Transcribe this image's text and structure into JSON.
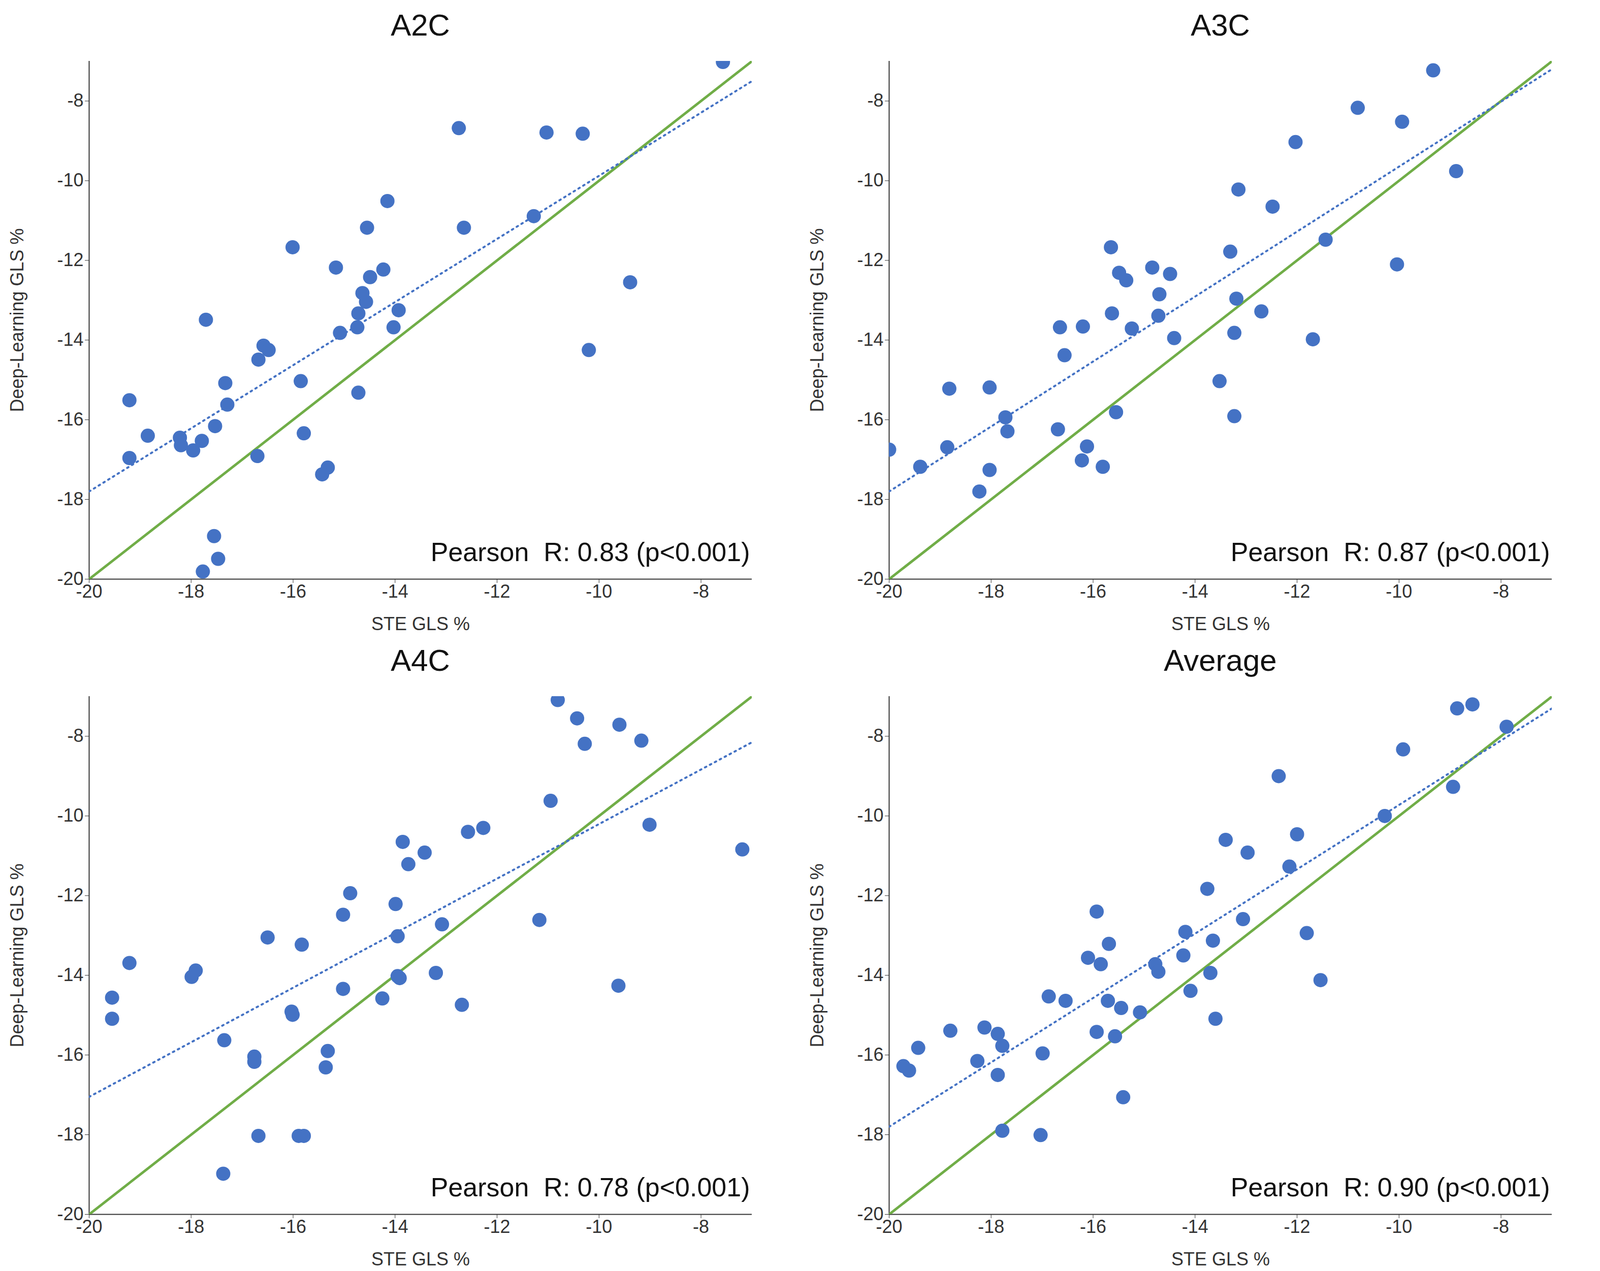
{
  "chart_data": [
    {
      "type": "scatter",
      "title": "A2C",
      "x_label": "STE GLS %",
      "y_label": "Deep-Learning GLS %",
      "xlim": [
        -20,
        -7
      ],
      "ylim": [
        -20,
        -7
      ],
      "xticks": [
        -20,
        -18,
        -16,
        -14,
        -12,
        -10,
        -8
      ],
      "yticks": [
        -20,
        -18,
        -16,
        -14,
        -12,
        -10,
        -8
      ],
      "annotation": "Pearson  R: 0.83 (p<0.001)",
      "series": [
        {
          "type": "scatter",
          "color": "#4472c4",
          "marker": "circle",
          "x": [
            -7.57,
            -12.75,
            -11.03,
            -10.32,
            -14.15,
            -14.55,
            -12.65,
            -11.28,
            -16.01,
            -15.16,
            -14.23,
            -14.49,
            -14.64,
            -14.57,
            -14.72,
            -14.74,
            -14.03,
            -13.93,
            -15.08,
            -16.58,
            -16.48,
            -16.68,
            -17.33,
            -17.29,
            -17.71,
            -15.85,
            -19.21,
            -17.53,
            -18.85,
            -18.22,
            -18.2,
            -17.79,
            -17.96,
            -19.21,
            -16.7,
            -14.72,
            -15.79,
            -15.32,
            -15.43,
            -17.55,
            -17.47,
            -17.77,
            -10.2,
            -9.39
          ],
          "values": [
            -7.02,
            -8.68,
            -8.79,
            -8.82,
            -10.51,
            -11.18,
            -11.18,
            -10.89,
            -11.67,
            -12.18,
            -12.23,
            -12.42,
            -12.82,
            -13.04,
            -13.33,
            -13.68,
            -13.68,
            -13.25,
            -13.82,
            -14.14,
            -14.25,
            -14.49,
            -15.08,
            -15.62,
            -13.49,
            -15.03,
            -15.51,
            -16.16,
            -16.4,
            -16.45,
            -16.64,
            -16.53,
            -16.77,
            -16.96,
            -16.91,
            -15.32,
            -16.34,
            -17.2,
            -17.37,
            -18.92,
            -19.49,
            -19.81,
            -14.25,
            -12.55
          ]
        },
        {
          "type": "line",
          "color": "#70ad47",
          "line_style": "solid",
          "x": [
            -20,
            -7
          ],
          "values": [
            -20,
            -7
          ]
        },
        {
          "type": "line",
          "color": "#4472c4",
          "line_style": "dotted",
          "x": [
            -20,
            -7
          ],
          "values": [
            -17.8,
            -7.5
          ]
        }
      ]
    },
    {
      "type": "scatter",
      "title": "A3C",
      "x_label": "STE GLS %",
      "y_label": "Deep-Learning GLS %",
      "xlim": [
        -20,
        -7
      ],
      "ylim": [
        -20,
        -7
      ],
      "xticks": [
        -20,
        -18,
        -16,
        -14,
        -12,
        -10,
        -8
      ],
      "yticks": [
        -20,
        -18,
        -16,
        -14,
        -12,
        -10,
        -8
      ],
      "annotation": "Pearson  R: 0.87 (p<0.001)",
      "series": [
        {
          "type": "scatter",
          "color": "#4472c4",
          "marker": "circle",
          "x": [
            -9.33,
            -10.81,
            -9.94,
            -8.88,
            -12.03,
            -13.15,
            -12.48,
            -10.04,
            -11.44,
            -15.65,
            -13.31,
            -15.49,
            -15.35,
            -14.84,
            -14.49,
            -14.7,
            -13.19,
            -15.63,
            -14.72,
            -15.24,
            -16.65,
            -16.2,
            -13.23,
            -14.41,
            -12.7,
            -11.69,
            -16.56,
            -13.23,
            -13.52,
            -15.55,
            -16.69,
            -17.72,
            -17.68,
            -18.03,
            -18.82,
            -18.86,
            -19.39,
            -20.0,
            -16.12,
            -16.22,
            -15.81,
            -18.03,
            -18.23
          ],
          "values": [
            -7.23,
            -8.17,
            -8.52,
            -9.76,
            -9.03,
            -10.22,
            -10.65,
            -12.1,
            -11.48,
            -11.67,
            -11.78,
            -12.31,
            -12.5,
            -12.18,
            -12.34,
            -12.85,
            -12.96,
            -13.33,
            -13.39,
            -13.71,
            -13.68,
            -13.66,
            -13.82,
            -13.95,
            -13.28,
            -13.98,
            -14.38,
            -15.91,
            -15.03,
            -15.81,
            -16.24,
            -15.94,
            -16.29,
            -15.19,
            -15.22,
            -16.69,
            -17.18,
            -16.75,
            -16.67,
            -17.02,
            -17.18,
            -17.26,
            -17.8
          ]
        },
        {
          "type": "line",
          "color": "#70ad47",
          "line_style": "solid",
          "x": [
            -20,
            -7
          ],
          "values": [
            -20,
            -7
          ]
        },
        {
          "type": "line",
          "color": "#4472c4",
          "line_style": "dotted",
          "x": [
            -20,
            -7
          ],
          "values": [
            -17.8,
            -7.2
          ]
        }
      ]
    },
    {
      "type": "scatter",
      "title": "A4C",
      "x_label": "STE GLS %",
      "y_label": "Deep-Learning GLS %",
      "xlim": [
        -20,
        -7
      ],
      "ylim": [
        -20,
        -7
      ],
      "xticks": [
        -20,
        -18,
        -16,
        -14,
        -12,
        -10,
        -8
      ],
      "yticks": [
        -20,
        -18,
        -16,
        -14,
        -12,
        -10,
        -8
      ],
      "annotation": "Pearson  R: 0.78 (p<0.001)",
      "series": [
        {
          "type": "scatter",
          "color": "#4472c4",
          "marker": "circle",
          "x": [
            -10.81,
            -10.43,
            -9.6,
            -9.17,
            -10.28,
            -7.19,
            -9.01,
            -10.95,
            -12.27,
            -12.57,
            -13.85,
            -13.42,
            -13.74,
            -14.88,
            -13.99,
            -15.02,
            -11.17,
            -13.08,
            -13.95,
            -16.5,
            -15.83,
            -19.21,
            -17.91,
            -17.99,
            -13.2,
            -13.95,
            -13.91,
            -19.55,
            -19.55,
            -16.03,
            -16.01,
            -15.02,
            -14.25,
            -12.69,
            -9.62,
            -17.35,
            -15.32,
            -15.36,
            -16.76,
            -16.76,
            -16.68,
            -15.89,
            -15.79,
            -17.37
          ],
          "values": [
            -7.09,
            -7.55,
            -7.71,
            -8.11,
            -8.19,
            -10.84,
            -10.22,
            -9.62,
            -10.3,
            -10.4,
            -10.65,
            -10.92,
            -11.21,
            -11.94,
            -12.21,
            -12.48,
            -12.61,
            -12.72,
            -13.02,
            -13.05,
            -13.23,
            -13.69,
            -13.88,
            -14.04,
            -13.94,
            -14.02,
            -14.07,
            -14.56,
            -15.09,
            -14.91,
            -14.99,
            -14.34,
            -14.58,
            -14.74,
            -14.26,
            -15.63,
            -15.9,
            -16.31,
            -16.04,
            -16.17,
            -18.03,
            -18.03,
            -18.03,
            -18.98
          ]
        },
        {
          "type": "line",
          "color": "#70ad47",
          "line_style": "solid",
          "x": [
            -20,
            -7
          ],
          "values": [
            -20,
            -7
          ]
        },
        {
          "type": "line",
          "color": "#4472c4",
          "line_style": "dotted",
          "x": [
            -20,
            -7
          ],
          "values": [
            -17.05,
            -8.15
          ]
        }
      ]
    },
    {
      "type": "scatter",
      "title": "Average",
      "x_label": "STE GLS %",
      "y_label": "Deep-Learning GLS %",
      "xlim": [
        -20,
        -7
      ],
      "ylim": [
        -20,
        -7
      ],
      "xticks": [
        -20,
        -18,
        -16,
        -14,
        -12,
        -10,
        -8
      ],
      "yticks": [
        -20,
        -18,
        -16,
        -14,
        -12,
        -10,
        -8
      ],
      "annotation": "Pearson  R: 0.90 (p<0.001)",
      "series": [
        {
          "type": "scatter",
          "color": "#4472c4",
          "marker": "circle",
          "x": [
            -8.56,
            -8.86,
            -7.89,
            -9.92,
            -12.36,
            -8.94,
            -10.28,
            -12.0,
            -13.4,
            -12.97,
            -12.15,
            -13.76,
            -15.93,
            -13.06,
            -11.81,
            -14.19,
            -15.69,
            -13.65,
            -16.1,
            -14.23,
            -15.85,
            -14.78,
            -14.72,
            -13.7,
            -11.54,
            -14.09,
            -16.87,
            -16.54,
            -15.71,
            -15.45,
            -15.08,
            -13.6,
            -15.93,
            -15.57,
            -18.13,
            -17.87,
            -17.78,
            -18.8,
            -19.43,
            -19.72,
            -19.61,
            -18.27,
            -16.99,
            -17.87,
            -15.41,
            -17.78,
            -17.03
          ],
          "values": [
            -7.2,
            -7.3,
            -7.76,
            -8.33,
            -9.0,
            -9.27,
            -10.0,
            -10.46,
            -10.6,
            -10.92,
            -11.27,
            -11.83,
            -12.4,
            -12.59,
            -12.94,
            -12.91,
            -13.21,
            -13.13,
            -13.56,
            -13.5,
            -13.72,
            -13.72,
            -13.91,
            -13.94,
            -14.12,
            -14.39,
            -14.53,
            -14.64,
            -14.64,
            -14.82,
            -14.93,
            -15.09,
            -15.42,
            -15.53,
            -15.31,
            -15.47,
            -15.77,
            -15.39,
            -15.82,
            -16.28,
            -16.39,
            -16.15,
            -15.96,
            -16.5,
            -17.06,
            -17.9,
            -18.01
          ]
        },
        {
          "type": "line",
          "color": "#70ad47",
          "line_style": "solid",
          "x": [
            -20,
            -7
          ],
          "values": [
            -20,
            -7
          ]
        },
        {
          "type": "line",
          "color": "#4472c4",
          "line_style": "dotted",
          "x": [
            -20,
            -7
          ],
          "values": [
            -17.8,
            -7.3
          ]
        }
      ]
    }
  ]
}
